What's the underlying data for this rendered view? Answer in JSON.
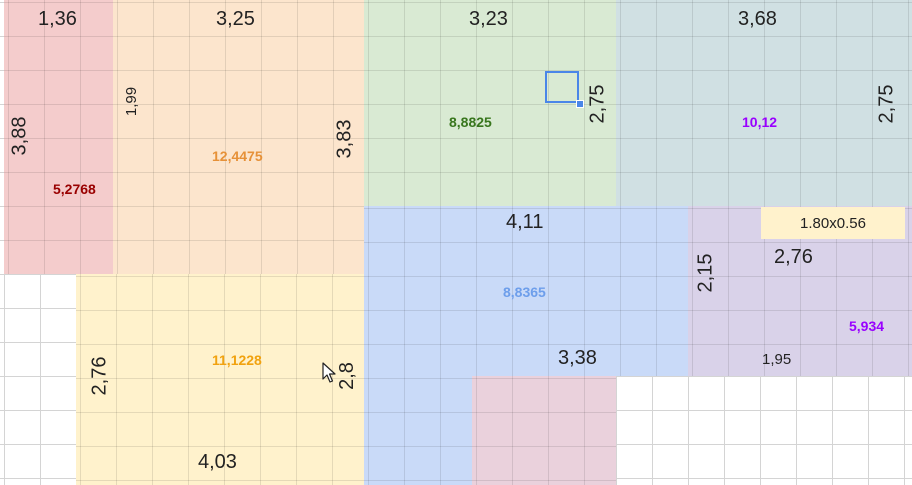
{
  "regions": {
    "red": {
      "color": "#f4cccc",
      "top_width": "1,36",
      "height": "3,88",
      "area": "5,2768",
      "area_color": "#990000"
    },
    "orange": {
      "color": "#fce5cd",
      "top_width": "3,25",
      "left_height": "1,99",
      "right_height": "3,83",
      "area": "12,4475",
      "area_color": "#e69138"
    },
    "green": {
      "color": "#d9ead3",
      "top_width": "3,23",
      "height": "2,75",
      "area": "8,8825",
      "area_color": "#38761d"
    },
    "teal": {
      "color": "#d0e0e3",
      "top_width": "3,68",
      "height": "2,75",
      "area": "10,12",
      "area_color": "#9900ff"
    },
    "blue": {
      "color": "#c9daf8",
      "top_width": "4,11",
      "bottom_width": "3,38",
      "area": "8,8365",
      "area_color": "#6d9eeb"
    },
    "purple": {
      "color": "#d9d2e9",
      "height": "2,15",
      "top_width": "2,76",
      "bottom_width": "1,95",
      "area": "5,934",
      "area_color": "#9900ff"
    },
    "yellow": {
      "color": "#fff2cc",
      "left_height": "2,76",
      "right_height": "2,8",
      "bottom_width": "4,03",
      "area": "11,1228",
      "area_color": "#f1a20f"
    },
    "pink": {
      "color": "#ead1dc"
    }
  },
  "dimension_badge": "1.80x0.56",
  "gridline_color": "#d4d4d4",
  "selection_color": "#4a86e8"
}
